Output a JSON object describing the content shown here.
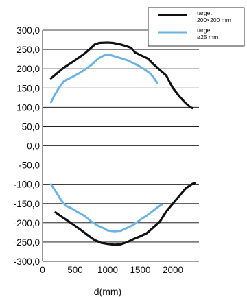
{
  "chart_data": {
    "type": "line",
    "xlabel": "d(mm)",
    "ylabel": "",
    "xlim": [
      0,
      2400
    ],
    "ylim": [
      -300,
      300
    ],
    "x_ticks": [
      "0",
      "500",
      "1000",
      "1500",
      "2000"
    ],
    "y_ticks": [
      "300,0",
      "250,0",
      "200,0",
      "150,0",
      "100,0",
      "50,0",
      "0,0",
      "-50,0",
      "-100,0",
      "-150,0",
      "-200,0",
      "-250,0",
      "-300,0"
    ],
    "grid": "horizontal",
    "legend_position": "top-right",
    "series": [
      {
        "name_lines": [
          "target",
          "200×200 mm"
        ],
        "color": "#111111",
        "curves": [
          [
            [
              130,
              175
            ],
            [
              200,
              185
            ],
            [
              320,
              202
            ],
            [
              500,
              222
            ],
            [
              650,
              240
            ],
            [
              750,
              255
            ],
            [
              800,
              263
            ],
            [
              870,
              267
            ],
            [
              1000,
              268
            ],
            [
              1080,
              267
            ],
            [
              1200,
              263
            ],
            [
              1300,
              258
            ],
            [
              1360,
              254
            ],
            [
              1420,
              242
            ],
            [
              1520,
              234
            ],
            [
              1620,
              226
            ],
            [
              1700,
              212
            ],
            [
              1800,
              197
            ],
            [
              1900,
              182
            ],
            [
              1950,
              165
            ],
            [
              2000,
              150
            ],
            [
              2100,
              128
            ],
            [
              2200,
              110
            ],
            [
              2270,
              100
            ],
            [
              2300,
              98
            ]
          ],
          [
            [
              200,
              -173
            ],
            [
              300,
              -185
            ],
            [
              450,
              -202
            ],
            [
              600,
              -220
            ],
            [
              700,
              -233
            ],
            [
              800,
              -245
            ],
            [
              900,
              -252
            ],
            [
              1000,
              -255
            ],
            [
              1100,
              -257
            ],
            [
              1200,
              -256
            ],
            [
              1300,
              -250
            ],
            [
              1400,
              -242
            ],
            [
              1500,
              -235
            ],
            [
              1600,
              -227
            ],
            [
              1700,
              -212
            ],
            [
              1800,
              -197
            ],
            [
              1900,
              -170
            ],
            [
              2000,
              -150
            ],
            [
              2100,
              -130
            ],
            [
              2200,
              -110
            ],
            [
              2300,
              -99
            ],
            [
              2330,
              -97
            ]
          ]
        ]
      },
      {
        "name_lines": [
          "target",
          "ø25 mm"
        ],
        "color": "#6ab3e3",
        "curves": [
          [
            [
              130,
              113
            ],
            [
              180,
              130
            ],
            [
              250,
              150
            ],
            [
              330,
              168
            ],
            [
              450,
              178
            ],
            [
              600,
              192
            ],
            [
              750,
              210
            ],
            [
              850,
              226
            ],
            [
              950,
              235
            ],
            [
              1050,
              235
            ],
            [
              1150,
              230
            ],
            [
              1300,
              222
            ],
            [
              1450,
              210
            ],
            [
              1550,
              200
            ],
            [
              1650,
              188
            ],
            [
              1700,
              178
            ],
            [
              1760,
              163
            ]
          ],
          [
            [
              130,
              -100
            ],
            [
              200,
              -118
            ],
            [
              280,
              -140
            ],
            [
              350,
              -155
            ],
            [
              450,
              -163
            ],
            [
              550,
              -173
            ],
            [
              650,
              -183
            ],
            [
              750,
              -197
            ],
            [
              850,
              -208
            ],
            [
              950,
              -215
            ],
            [
              1000,
              -220
            ],
            [
              1100,
              -222
            ],
            [
              1200,
              -221
            ],
            [
              1300,
              -213
            ],
            [
              1400,
              -205
            ],
            [
              1500,
              -192
            ],
            [
              1600,
              -181
            ],
            [
              1700,
              -168
            ],
            [
              1780,
              -158
            ],
            [
              1830,
              -153
            ]
          ]
        ]
      }
    ]
  }
}
